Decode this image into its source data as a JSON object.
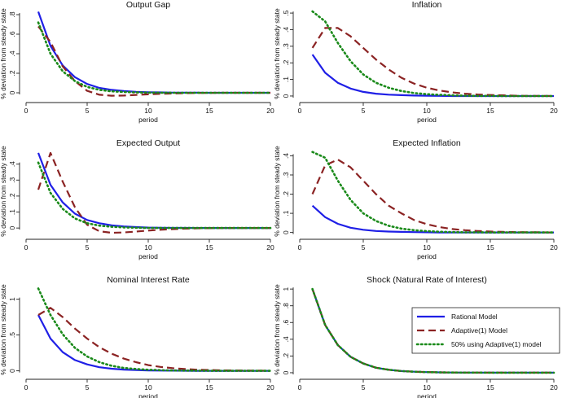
{
  "figure": {
    "series_styles": [
      {
        "name": "Rational Model",
        "color": "#1f1fe6",
        "style": "solid"
      },
      {
        "name": "Adaptive(1) Model",
        "color": "#8b2323",
        "style": "dashed"
      },
      {
        "name": "50% using Adaptive(1) model",
        "color": "#1a8a1a",
        "style": "dotted"
      }
    ],
    "legend_panel": "Shock (Natural Rate of Interest)"
  },
  "chart_data": [
    {
      "type": "line",
      "title": "Output Gap",
      "xlabel": "period",
      "ylabel": "% deviation from steady state",
      "xlim": [
        0,
        20
      ],
      "ylim": [
        -0.05,
        0.85
      ],
      "xticks": [
        0,
        5,
        10,
        15,
        20
      ],
      "yticks": [
        0,
        0.2,
        0.4,
        0.6,
        0.8
      ],
      "ytick_labels": [
        "0",
        ".2",
        ".4",
        ".6",
        ".8"
      ],
      "x": [
        1,
        2,
        3,
        4,
        5,
        6,
        7,
        8,
        9,
        10,
        11,
        12,
        13,
        14,
        15,
        16,
        17,
        18,
        19,
        20
      ],
      "series": [
        {
          "name": "Rational Model",
          "values": [
            0.83,
            0.48,
            0.28,
            0.16,
            0.09,
            0.05,
            0.03,
            0.018,
            0.01,
            0.006,
            0.004,
            0.002,
            0.001,
            0.001,
            0,
            0,
            0,
            0,
            0,
            0
          ]
        },
        {
          "name": "Adaptive(1) Model",
          "values": [
            0.68,
            0.52,
            0.27,
            0.12,
            0.02,
            -0.02,
            -0.03,
            -0.028,
            -0.022,
            -0.016,
            -0.011,
            -0.007,
            -0.004,
            -0.002,
            -0.001,
            0,
            0,
            0,
            0,
            0
          ]
        },
        {
          "name": "50% using Adaptive(1) model",
          "values": [
            0.72,
            0.4,
            0.22,
            0.12,
            0.06,
            0.03,
            0.015,
            0.008,
            0.004,
            0.002,
            0.001,
            0,
            0,
            0,
            0,
            0,
            0,
            0,
            0,
            0
          ]
        }
      ]
    },
    {
      "type": "line",
      "title": "Inflation",
      "xlabel": "period",
      "ylabel": "% deviation from steady state",
      "xlim": [
        0,
        20
      ],
      "ylim": [
        -0.01,
        0.52
      ],
      "xticks": [
        0,
        5,
        10,
        15,
        20
      ],
      "yticks": [
        0,
        0.1,
        0.2,
        0.3,
        0.4,
        0.5
      ],
      "ytick_labels": [
        "0",
        ".1",
        ".2",
        ".3",
        ".4",
        ".5"
      ],
      "x": [
        1,
        2,
        3,
        4,
        5,
        6,
        7,
        8,
        9,
        10,
        11,
        12,
        13,
        14,
        15,
        16,
        17,
        18,
        19,
        20
      ],
      "series": [
        {
          "name": "Rational Model",
          "values": [
            0.25,
            0.14,
            0.08,
            0.045,
            0.025,
            0.014,
            0.008,
            0.005,
            0.003,
            0.002,
            0.001,
            0,
            0,
            0,
            0,
            0,
            0,
            0,
            0,
            0
          ]
        },
        {
          "name": "Adaptive(1) Model",
          "values": [
            0.29,
            0.41,
            0.41,
            0.36,
            0.29,
            0.22,
            0.16,
            0.11,
            0.075,
            0.05,
            0.033,
            0.022,
            0.014,
            0.009,
            0.006,
            0.004,
            0.002,
            0.001,
            0.001,
            0
          ]
        },
        {
          "name": "50% using Adaptive(1) model",
          "values": [
            0.51,
            0.45,
            0.32,
            0.21,
            0.13,
            0.08,
            0.05,
            0.03,
            0.018,
            0.011,
            0.007,
            0.004,
            0.002,
            0.001,
            0.001,
            0,
            0,
            0,
            0,
            0
          ]
        }
      ]
    },
    {
      "type": "line",
      "title": "Expected Output",
      "xlabel": "period",
      "ylabel": "% deviation from steady state",
      "xlim": [
        0,
        20
      ],
      "ylim": [
        -0.04,
        0.5
      ],
      "xticks": [
        0,
        5,
        10,
        15,
        20
      ],
      "yticks": [
        0,
        0.1,
        0.2,
        0.3,
        0.4
      ],
      "ytick_labels": [
        "0",
        ".1",
        ".2",
        ".3",
        ".4"
      ],
      "x": [
        1,
        2,
        3,
        4,
        5,
        6,
        7,
        8,
        9,
        10,
        11,
        12,
        13,
        14,
        15,
        16,
        17,
        18,
        19,
        20
      ],
      "series": [
        {
          "name": "Rational Model",
          "values": [
            0.47,
            0.27,
            0.16,
            0.09,
            0.05,
            0.03,
            0.017,
            0.01,
            0.006,
            0.003,
            0.002,
            0.001,
            0.001,
            0,
            0,
            0,
            0,
            0,
            0,
            0
          ]
        },
        {
          "name": "Adaptive(1) Model",
          "values": [
            0.24,
            0.47,
            0.29,
            0.13,
            0.02,
            -0.02,
            -0.03,
            -0.028,
            -0.022,
            -0.016,
            -0.011,
            -0.007,
            -0.004,
            -0.002,
            -0.001,
            0,
            0,
            0,
            0,
            0
          ]
        },
        {
          "name": "50% using Adaptive(1) model",
          "values": [
            0.41,
            0.22,
            0.12,
            0.06,
            0.03,
            0.015,
            0.008,
            0.004,
            0.002,
            0.001,
            0,
            0,
            0,
            0,
            0,
            0,
            0,
            0,
            0,
            0
          ]
        }
      ]
    },
    {
      "type": "line",
      "title": "Expected Inflation",
      "xlabel": "period",
      "ylabel": "% deviation from steady state",
      "xlim": [
        0,
        20
      ],
      "ylim": [
        -0.01,
        0.44
      ],
      "xticks": [
        0,
        5,
        10,
        15,
        20
      ],
      "yticks": [
        0,
        0.1,
        0.2,
        0.3,
        0.4
      ],
      "ytick_labels": [
        "0",
        ".1",
        ".2",
        ".3",
        ".4"
      ],
      "x": [
        1,
        2,
        3,
        4,
        5,
        6,
        7,
        8,
        9,
        10,
        11,
        12,
        13,
        14,
        15,
        16,
        17,
        18,
        19,
        20
      ],
      "series": [
        {
          "name": "Rational Model",
          "values": [
            0.14,
            0.08,
            0.045,
            0.025,
            0.014,
            0.008,
            0.005,
            0.003,
            0.002,
            0.001,
            0,
            0,
            0,
            0,
            0,
            0,
            0,
            0,
            0,
            0
          ]
        },
        {
          "name": "Adaptive(1) Model",
          "values": [
            0.2,
            0.35,
            0.38,
            0.34,
            0.27,
            0.2,
            0.14,
            0.1,
            0.065,
            0.043,
            0.028,
            0.018,
            0.012,
            0.008,
            0.005,
            0.003,
            0.002,
            0.001,
            0.001,
            0
          ]
        },
        {
          "name": "50% using Adaptive(1) model",
          "values": [
            0.42,
            0.39,
            0.27,
            0.17,
            0.1,
            0.06,
            0.035,
            0.02,
            0.012,
            0.007,
            0.004,
            0.002,
            0.001,
            0.001,
            0,
            0,
            0,
            0,
            0,
            0
          ]
        }
      ]
    },
    {
      "type": "line",
      "title": "Nominal Interest Rate",
      "xlabel": "period",
      "ylabel": "% deviation from steady state",
      "xlim": [
        0,
        20
      ],
      "ylim": [
        -0.05,
        1.2
      ],
      "xticks": [
        0,
        5,
        10,
        15,
        20
      ],
      "yticks": [
        0,
        0.5,
        1
      ],
      "ytick_labels": [
        "0",
        ".5",
        "1"
      ],
      "x": [
        1,
        2,
        3,
        4,
        5,
        6,
        7,
        8,
        9,
        10,
        11,
        12,
        13,
        14,
        15,
        16,
        17,
        18,
        19,
        20
      ],
      "series": [
        {
          "name": "Rational Model",
          "values": [
            0.78,
            0.45,
            0.26,
            0.15,
            0.09,
            0.05,
            0.03,
            0.017,
            0.01,
            0.006,
            0.003,
            0.002,
            0.001,
            0,
            0,
            0,
            0,
            0,
            0,
            0
          ]
        },
        {
          "name": "Adaptive(1) Model",
          "values": [
            0.78,
            0.88,
            0.75,
            0.59,
            0.45,
            0.33,
            0.24,
            0.17,
            0.12,
            0.08,
            0.055,
            0.037,
            0.025,
            0.016,
            0.011,
            0.007,
            0.005,
            0.003,
            0.002,
            0.001
          ]
        },
        {
          "name": "50% using Adaptive(1) model",
          "values": [
            1.15,
            0.78,
            0.51,
            0.32,
            0.2,
            0.12,
            0.07,
            0.04,
            0.025,
            0.015,
            0.009,
            0.005,
            0.003,
            0.002,
            0.001,
            0,
            0,
            0,
            0,
            0
          ]
        }
      ]
    },
    {
      "type": "line",
      "title": "Shock (Natural Rate of Interest)",
      "xlabel": "period",
      "ylabel": "% deviation from steady state",
      "xlim": [
        0,
        20
      ],
      "ylim": [
        -0.02,
        1.05
      ],
      "xticks": [
        0,
        5,
        10,
        15,
        20
      ],
      "yticks": [
        0,
        0.2,
        0.4,
        0.6,
        0.8,
        1
      ],
      "ytick_labels": [
        "0",
        ".2",
        ".4",
        ".6",
        ".8",
        "1"
      ],
      "x": [
        1,
        2,
        3,
        4,
        5,
        6,
        7,
        8,
        9,
        10,
        11,
        12,
        13,
        14,
        15,
        16,
        17,
        18,
        19,
        20
      ],
      "series": [
        {
          "name": "Rational Model",
          "values": [
            1.0,
            0.57,
            0.33,
            0.19,
            0.11,
            0.06,
            0.035,
            0.02,
            0.012,
            0.007,
            0.004,
            0.002,
            0.001,
            0.001,
            0,
            0,
            0,
            0,
            0,
            0
          ]
        },
        {
          "name": "Adaptive(1) Model",
          "values": [
            1.0,
            0.57,
            0.33,
            0.19,
            0.11,
            0.06,
            0.035,
            0.02,
            0.012,
            0.007,
            0.004,
            0.002,
            0.001,
            0.001,
            0,
            0,
            0,
            0,
            0,
            0
          ]
        },
        {
          "name": "50% using Adaptive(1) model",
          "values": [
            1.0,
            0.57,
            0.33,
            0.19,
            0.11,
            0.06,
            0.035,
            0.02,
            0.012,
            0.007,
            0.004,
            0.002,
            0.001,
            0.001,
            0,
            0,
            0,
            0,
            0,
            0
          ]
        }
      ],
      "legend": [
        "Rational Model",
        "Adaptive(1) Model",
        "50% using Adaptive(1) model"
      ],
      "legend_position": "center-right"
    }
  ]
}
